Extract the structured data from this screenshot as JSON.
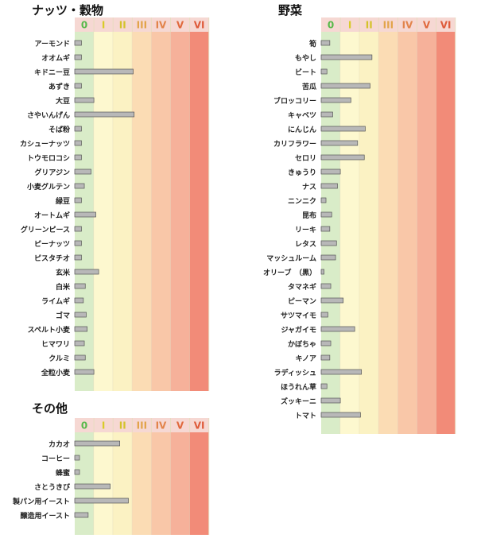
{
  "class_labels": [
    "0",
    "I",
    "II",
    "III",
    "IV",
    "V",
    "VI"
  ],
  "class_colors": {
    "label": [
      "#57b94a",
      "#d8cb29",
      "#d4c22a",
      "#e2a44a",
      "#e2834a",
      "#e0683c",
      "#de5a3a"
    ],
    "band": [
      "#d9ecc8",
      "#fdf8cf",
      "#fbf2c3",
      "#fbdcb4",
      "#f9c7a8",
      "#f6b19a",
      "#f28b78"
    ],
    "header": "#f6d8d3",
    "bar": "#b8b8b8"
  },
  "chart_data": [
    {
      "type": "bar",
      "title": "ナッツ・穀物",
      "orientation": "horizontal",
      "xlim": [
        0,
        7
      ],
      "categories": [
        "アーモンド",
        "オオムギ",
        "キドニー豆",
        "あずき",
        "大豆",
        "さやいんげん",
        "そば粉",
        "カシューナッツ",
        "トウモロコシ",
        "グリアジン",
        "小麦グルテン",
        "緑豆",
        "オートムギ",
        "グリーンピース",
        "ピーナッツ",
        "ピスタチオ",
        "玄米",
        "白米",
        "ライムギ",
        "ゴマ",
        "スペルト小麦",
        "ヒマワリ",
        "クルミ",
        "全粒小麦"
      ],
      "values": [
        0.35,
        0.35,
        3.05,
        0.35,
        1.0,
        3.1,
        0.35,
        0.35,
        0.35,
        0.85,
        0.5,
        0.35,
        1.1,
        0.35,
        0.35,
        0.35,
        1.25,
        0.55,
        0.45,
        0.6,
        0.65,
        0.5,
        0.55,
        1.0
      ]
    },
    {
      "type": "bar",
      "title": "その他",
      "orientation": "horizontal",
      "xlim": [
        0,
        7
      ],
      "categories": [
        "カカオ",
        "コーヒー",
        "蜂蜜",
        "さとうきび",
        "製パン用イースト",
        "醸造用イースト"
      ],
      "values": [
        2.35,
        0.25,
        0.25,
        1.85,
        2.8,
        0.7
      ]
    },
    {
      "type": "bar",
      "title": "野菜",
      "orientation": "horizontal",
      "xlim": [
        0,
        7
      ],
      "categories": [
        "筍",
        "もやし",
        "ビート",
        "苦瓜",
        "ブロッコリー",
        "キャベツ",
        "にんじん",
        "カリフラワー",
        "セロリ",
        "きゅうり",
        "ナス",
        "ニンニク",
        "昆布",
        "リーキ",
        "レタス",
        "マッシュルーム",
        "オリーブ　（黒）",
        "タマネギ",
        "ピーマン",
        "サツマイモ",
        "ジャガイモ",
        "かぼちゃ",
        "キノア",
        "ラディッシュ",
        "ほうれん草",
        "ズッキーニ",
        "トマト"
      ],
      "values": [
        0.45,
        2.65,
        0.3,
        2.55,
        1.55,
        0.6,
        2.3,
        1.9,
        2.25,
        1.0,
        0.85,
        0.25,
        0.55,
        0.45,
        0.8,
        0.75,
        0.15,
        0.5,
        1.15,
        0.35,
        1.75,
        0.5,
        0.45,
        2.1,
        0.3,
        1.0,
        2.05
      ]
    }
  ]
}
